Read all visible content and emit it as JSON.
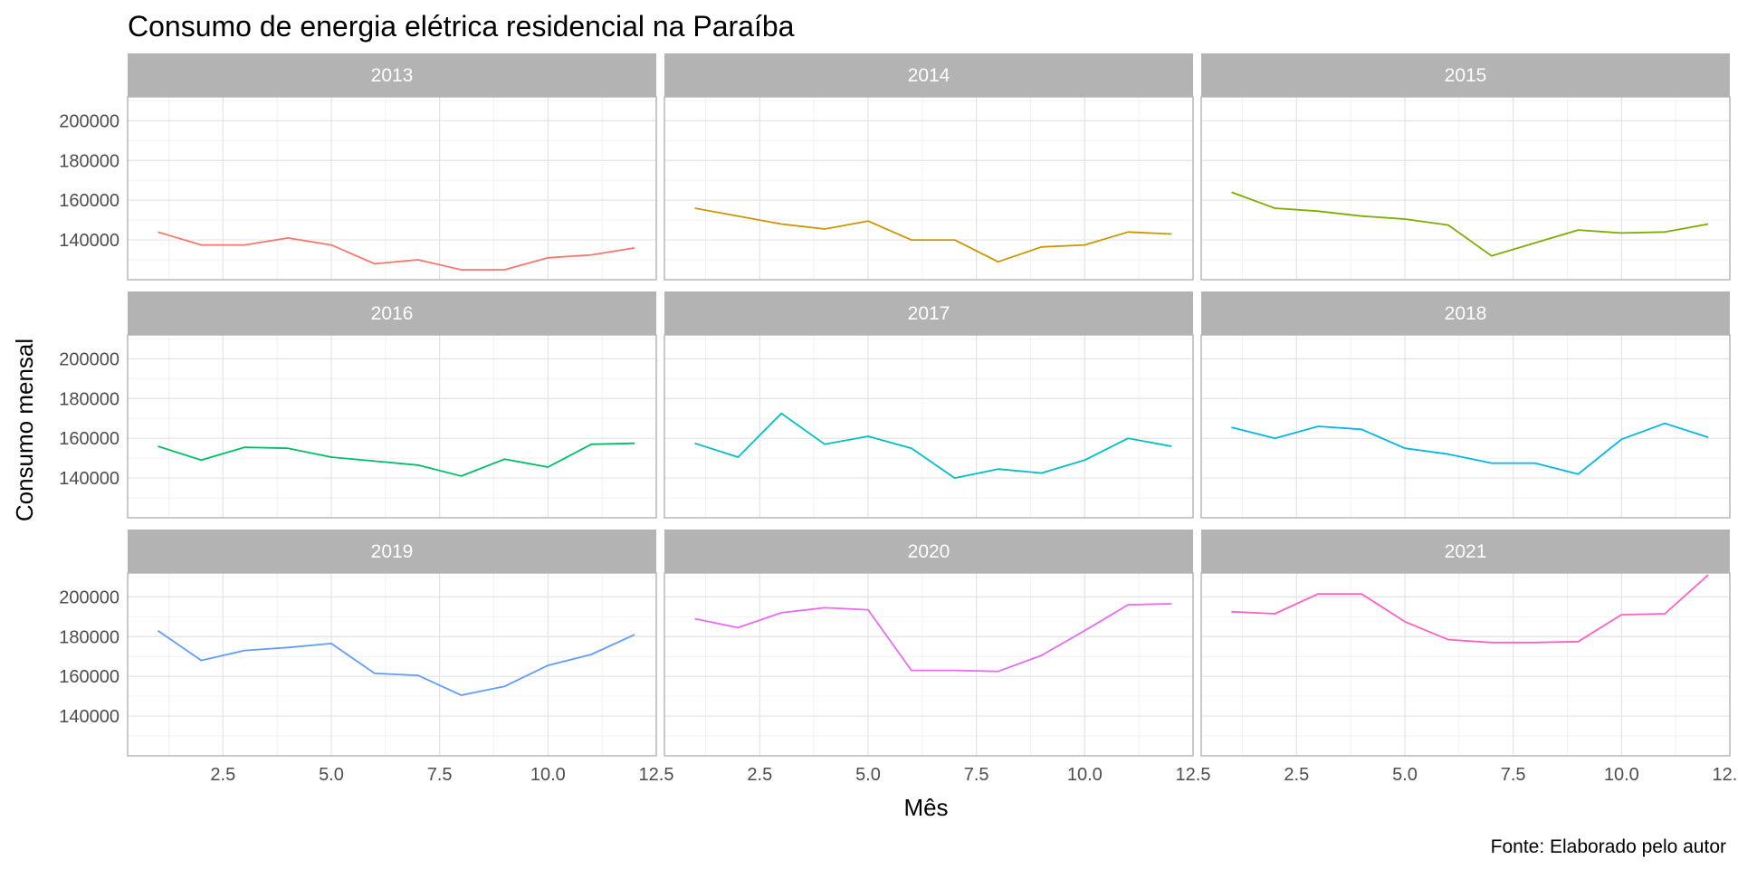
{
  "chart_data": {
    "type": "line",
    "title": "Consumo de energia elétrica residencial na Paraíba",
    "xlabel": "Mês",
    "ylabel": "Consumo mensal",
    "caption": "Fonte: Elaborado pelo autor",
    "xlim": [
      0.3,
      12.5
    ],
    "ylim": [
      120000,
      212000
    ],
    "x_ticks": [
      2.5,
      5.0,
      7.5,
      10.0,
      12.5
    ],
    "x_tick_labels": [
      "2.5",
      "5.0",
      "7.5",
      "10.0",
      "12.5"
    ],
    "y_ticks": [
      140000,
      160000,
      180000,
      200000
    ],
    "y_tick_labels": [
      "140000",
      "160000",
      "180000",
      "200000"
    ],
    "grid": true,
    "legend": "none",
    "layout": "facet grid 3x3",
    "panels": [
      {
        "name": "2013",
        "color": "#F8766D",
        "x": [
          1,
          2,
          3,
          4,
          5,
          6,
          7,
          8,
          9,
          10,
          11,
          12
        ],
        "values": [
          144000,
          137500,
          137500,
          141000,
          137500,
          128000,
          130000,
          125000,
          125000,
          131000,
          132500,
          136000
        ]
      },
      {
        "name": "2014",
        "color": "#CD9600",
        "x": [
          1,
          2,
          3,
          4,
          5,
          6,
          7,
          8,
          9,
          10,
          11,
          12
        ],
        "values": [
          156000,
          152000,
          148000,
          145500,
          149500,
          140000,
          140000,
          129000,
          136500,
          137500,
          144000,
          143000
        ]
      },
      {
        "name": "2015",
        "color": "#7CAE00",
        "x": [
          1,
          2,
          3,
          4,
          5,
          6,
          7,
          8,
          9,
          10,
          11,
          12
        ],
        "values": [
          164000,
          156000,
          154500,
          152000,
          150500,
          147500,
          132000,
          138500,
          145000,
          143500,
          144000,
          148000
        ]
      },
      {
        "name": "2016",
        "color": "#00BE67",
        "x": [
          1,
          2,
          3,
          4,
          5,
          6,
          7,
          8,
          9,
          10,
          11,
          12
        ],
        "values": [
          156000,
          149000,
          155500,
          155000,
          150500,
          148500,
          146500,
          141000,
          149500,
          145500,
          157000,
          157500
        ]
      },
      {
        "name": "2017",
        "color": "#00BFC4",
        "x": [
          1,
          2,
          3,
          4,
          5,
          6,
          7,
          8,
          9,
          10,
          11,
          12
        ],
        "values": [
          157500,
          150500,
          172500,
          157000,
          161000,
          155000,
          140000,
          144500,
          142500,
          149000,
          160000,
          156000
        ]
      },
      {
        "name": "2018",
        "color": "#00B8E7",
        "x": [
          1,
          2,
          3,
          4,
          5,
          6,
          7,
          8,
          9,
          10,
          11,
          12
        ],
        "values": [
          165500,
          160000,
          166000,
          164500,
          155000,
          152000,
          147500,
          147500,
          142000,
          159500,
          167500,
          160500
        ]
      },
      {
        "name": "2019",
        "color": "#619CFF",
        "x": [
          1,
          2,
          3,
          4,
          5,
          6,
          7,
          8,
          9,
          10,
          11,
          12
        ],
        "values": [
          183000,
          168000,
          173000,
          174500,
          176500,
          161500,
          160500,
          150500,
          155000,
          165500,
          171000,
          181000
        ]
      },
      {
        "name": "2020",
        "color": "#E76BF3",
        "x": [
          1,
          2,
          3,
          4,
          5,
          6,
          7,
          8,
          9,
          10,
          11,
          12
        ],
        "values": [
          189000,
          184500,
          192000,
          194500,
          193500,
          163000,
          163000,
          162500,
          170500,
          183000,
          196000,
          196500
        ]
      },
      {
        "name": "2021",
        "color": "#FF61C3",
        "x": [
          1,
          2,
          3,
          4,
          5,
          6,
          7,
          8,
          9,
          10,
          11,
          12
        ],
        "values": [
          192500,
          191500,
          201500,
          201500,
          187500,
          178500,
          177000,
          177000,
          177500,
          191000,
          191500,
          211000
        ]
      }
    ]
  }
}
